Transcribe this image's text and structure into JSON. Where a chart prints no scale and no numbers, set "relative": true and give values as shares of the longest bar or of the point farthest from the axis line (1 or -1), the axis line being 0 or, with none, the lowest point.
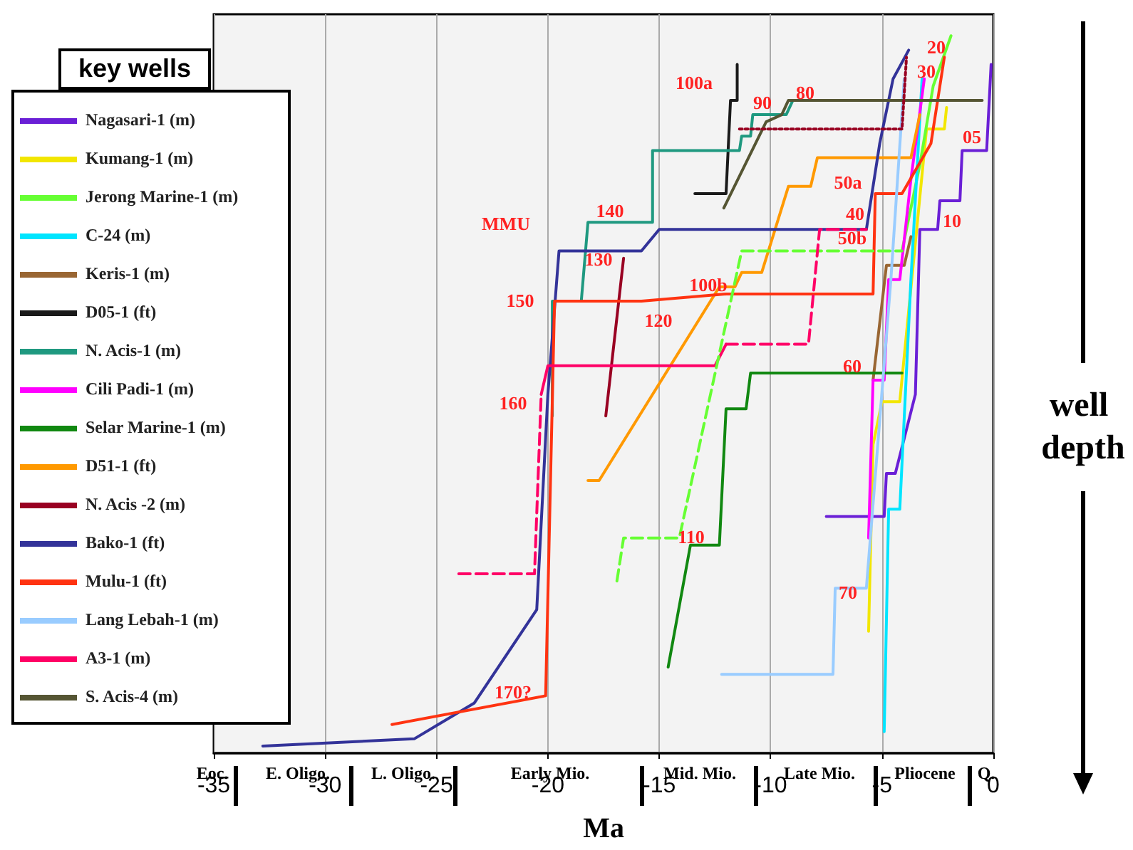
{
  "chart_data": {
    "type": "line",
    "relative": true,
    "xlabel": "Ma",
    "ylabel": "well depth",
    "legend_title": "key wells",
    "legend": "left",
    "grid": "x",
    "xlim": [
      -35,
      0
    ],
    "xticks": [
      -35,
      -30,
      -25,
      -20,
      -15,
      -10,
      -5,
      0
    ],
    "series": [
      {
        "name": "Nagasari-1 (m)",
        "color": "#6a1fd6",
        "x": [
          -7.5,
          -4.9,
          -4.8,
          -4.4,
          -3.5,
          -3.3,
          -2.5,
          -2.4,
          -1.5,
          -1.4,
          -0.3,
          -0.1
        ],
        "values": [
          0.33,
          0.33,
          0.39,
          0.39,
          0.5,
          0.73,
          0.73,
          0.77,
          0.77,
          0.84,
          0.84,
          0.96
        ]
      },
      {
        "name": "Kumang-1 (m)",
        "color": "#f2e600",
        "x": [
          -5.6,
          -5.4,
          -5.0,
          -4.2,
          -3.0,
          -2.2,
          -2.1
        ],
        "values": [
          0.17,
          0.43,
          0.49,
          0.49,
          0.87,
          0.87,
          0.9
        ]
      },
      {
        "name": "Jerong Marine-1 (m)",
        "color": "#66ff33",
        "x": [
          -4.1,
          -3.3,
          -2.7,
          -1.9
        ],
        "values": [
          0.7,
          0.82,
          0.93,
          1.0
        ]
      },
      {
        "name": "C-24 (m)",
        "color": "#00e5ff",
        "x": [
          -4.9,
          -4.7,
          -4.2,
          -3.7,
          -3.2
        ],
        "values": [
          0.03,
          0.34,
          0.34,
          0.66,
          0.94
        ]
      },
      {
        "name": "Keris-1 (m)",
        "color": "#996633",
        "x": [
          -5.4,
          -4.8,
          -4.0,
          -3.7
        ],
        "values": [
          0.52,
          0.68,
          0.68,
          0.72
        ]
      },
      {
        "name": "D05-1 (ft)",
        "color": "#1a1a1a",
        "x": [
          -13.4,
          -12.0,
          -11.8,
          -11.5,
          -11.5
        ],
        "values": [
          0.78,
          0.78,
          0.91,
          0.91,
          0.96
        ]
      },
      {
        "name": "N. Acis-1 (m)",
        "color": "#1f9980",
        "x": [
          -19.8,
          -19.8,
          -18.5,
          -18.2,
          -15.3,
          -15.3,
          -11.4,
          -11.3,
          -10.9,
          -10.8,
          -9.3,
          -9.0,
          -7.1
        ],
        "values": [
          0.47,
          0.63,
          0.63,
          0.74,
          0.74,
          0.84,
          0.84,
          0.86,
          0.86,
          0.89,
          0.89,
          0.91,
          0.91
        ]
      },
      {
        "name": "Cili Padi-1 (m)",
        "color": "#ff00ff",
        "x": [
          -5.6,
          -5.4,
          -4.9,
          -4.7,
          -4.2,
          -3.7,
          -3.1
        ],
        "values": [
          0.3,
          0.52,
          0.52,
          0.66,
          0.66,
          0.8,
          0.94
        ]
      },
      {
        "name": "Selar Marine-1 (m)",
        "color": "#118811",
        "x": [
          -14.6,
          -13.6,
          -12.3,
          -12.0,
          -11.1,
          -10.9,
          -4.1
        ],
        "values": [
          0.12,
          0.29,
          0.29,
          0.48,
          0.48,
          0.53,
          0.53
        ]
      },
      {
        "name": "D51-1 (ft)",
        "color": "#ff9900",
        "x": [
          -18.2,
          -17.7,
          -12.3,
          -11.6,
          -11.3,
          -10.4,
          -9.2,
          -8.2,
          -7.9,
          -3.7,
          -3.3
        ],
        "values": [
          0.38,
          0.38,
          0.65,
          0.65,
          0.67,
          0.67,
          0.79,
          0.79,
          0.83,
          0.83,
          0.89
        ]
      },
      {
        "name": "N. Acis -2 (m)",
        "color": "#990022",
        "x": [
          -17.4,
          -16.6
        ],
        "values": [
          0.47,
          0.69
        ]
      },
      {
        "name": "Bako-1 (ft)",
        "color": "#333399",
        "x": [
          -32.8,
          -26.0,
          -23.3,
          -20.5,
          -20.0,
          -19.5,
          -15.8,
          -15.0,
          -5.7,
          -5.1,
          -4.5,
          -3.8
        ],
        "values": [
          0.01,
          0.02,
          0.07,
          0.2,
          0.5,
          0.7,
          0.7,
          0.73,
          0.73,
          0.85,
          0.94,
          0.98
        ]
      },
      {
        "name": "Mulu-1 (ft)",
        "color": "#ff3311",
        "x": [
          -27.0,
          -20.1,
          -19.7,
          -15.8,
          -12.0,
          -5.4,
          -5.3,
          -4.1,
          -2.8,
          -2.2
        ],
        "values": [
          0.04,
          0.08,
          0.63,
          0.63,
          0.64,
          0.64,
          0.78,
          0.78,
          0.85,
          0.97
        ]
      },
      {
        "name": "Lang Lebah-1 (m)",
        "color": "#99ccff",
        "x": [
          -12.2,
          -7.2,
          -7.1,
          -5.7,
          -4.6,
          -4.0
        ],
        "values": [
          0.11,
          0.11,
          0.23,
          0.23,
          0.66,
          0.94
        ]
      },
      {
        "name": "A3-1 (m)",
        "color": "#ff0066",
        "x": [
          -20.3,
          -20.0,
          -12.5,
          -12.0
        ],
        "values": [
          0.5,
          0.54,
          0.54,
          0.57
        ]
      },
      {
        "name": "S. Acis-4 (m)",
        "color": "#555533",
        "x": [
          -12.1,
          -10.2,
          -9.5,
          -9.2,
          -0.5
        ],
        "values": [
          0.76,
          0.88,
          0.89,
          0.91,
          0.91
        ]
      },
      {
        "color": "#66ff33",
        "line_style": "dashed",
        "x": [
          -16.9,
          -16.6,
          -14.1,
          -11.3,
          -4.1
        ],
        "values": [
          0.24,
          0.3,
          0.3,
          0.7,
          0.7
        ]
      },
      {
        "color": "#ff0066",
        "line_style": "dashed",
        "x": [
          -24.0,
          -20.6,
          -20.3
        ],
        "values": [
          0.25,
          0.25,
          0.5
        ]
      },
      {
        "color": "#ff0066",
        "line_style": "dashed",
        "x": [
          -12.0,
          -8.3,
          -7.8,
          -5.7
        ],
        "values": [
          0.57,
          0.57,
          0.73,
          0.73
        ]
      },
      {
        "color": "#990022",
        "line_style": "dotted",
        "x": [
          -11.4,
          -4.1,
          -3.9
        ],
        "values": [
          0.87,
          0.87,
          0.97
        ]
      }
    ],
    "annotations": [
      "MMU",
      "100a",
      "90",
      "80",
      "140",
      "130",
      "150",
      "120",
      "100b",
      "160",
      "110",
      "70",
      "170?",
      "60",
      "50a",
      "40",
      "50b",
      "30",
      "20",
      "05",
      "10",
      "Eoc.",
      "E. Oligo.",
      "L. Oligo.",
      "Early Mio.",
      "Mid. Mio.",
      "Late Mio.",
      "Pliocene",
      "Q."
    ]
  }
}
